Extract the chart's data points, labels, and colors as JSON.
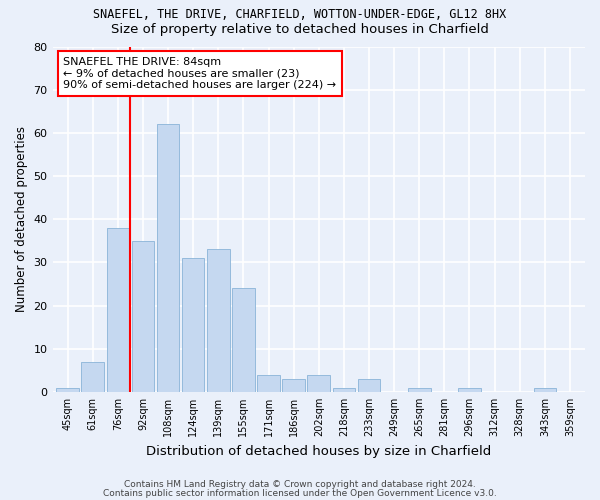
{
  "title": "SNAEFEL, THE DRIVE, CHARFIELD, WOTTON-UNDER-EDGE, GL12 8HX",
  "subtitle": "Size of property relative to detached houses in Charfield",
  "xlabel": "Distribution of detached houses by size in Charfield",
  "ylabel": "Number of detached properties",
  "bar_color": "#c5d8f0",
  "bar_edge_color": "#8ab4d8",
  "categories": [
    "45sqm",
    "61sqm",
    "76sqm",
    "92sqm",
    "108sqm",
    "124sqm",
    "139sqm",
    "155sqm",
    "171sqm",
    "186sqm",
    "202sqm",
    "218sqm",
    "233sqm",
    "249sqm",
    "265sqm",
    "281sqm",
    "296sqm",
    "312sqm",
    "328sqm",
    "343sqm",
    "359sqm"
  ],
  "values": [
    1,
    7,
    38,
    35,
    62,
    31,
    33,
    24,
    4,
    3,
    4,
    1,
    3,
    0,
    1,
    0,
    1,
    0,
    0,
    1,
    0
  ],
  "ylim": [
    0,
    80
  ],
  "yticks": [
    0,
    10,
    20,
    30,
    40,
    50,
    60,
    70,
    80
  ],
  "red_line_x": 2.5,
  "annotation_line1": "SNAEFEL THE DRIVE: 84sqm",
  "annotation_line2": "← 9% of detached houses are smaller (23)",
  "annotation_line3": "90% of semi-detached houses are larger (224) →",
  "footer_line1": "Contains HM Land Registry data © Crown copyright and database right 2024.",
  "footer_line2": "Contains public sector information licensed under the Open Government Licence v3.0.",
  "background_color": "#eaf0fa",
  "plot_bg_color": "#eaf0fa",
  "grid_color": "#ffffff",
  "title_fontsize": 8.5,
  "subtitle_fontsize": 9.5,
  "axis_label_fontsize": 8.5,
  "tick_fontsize": 7,
  "footer_fontsize": 6.5,
  "annot_fontsize": 8
}
